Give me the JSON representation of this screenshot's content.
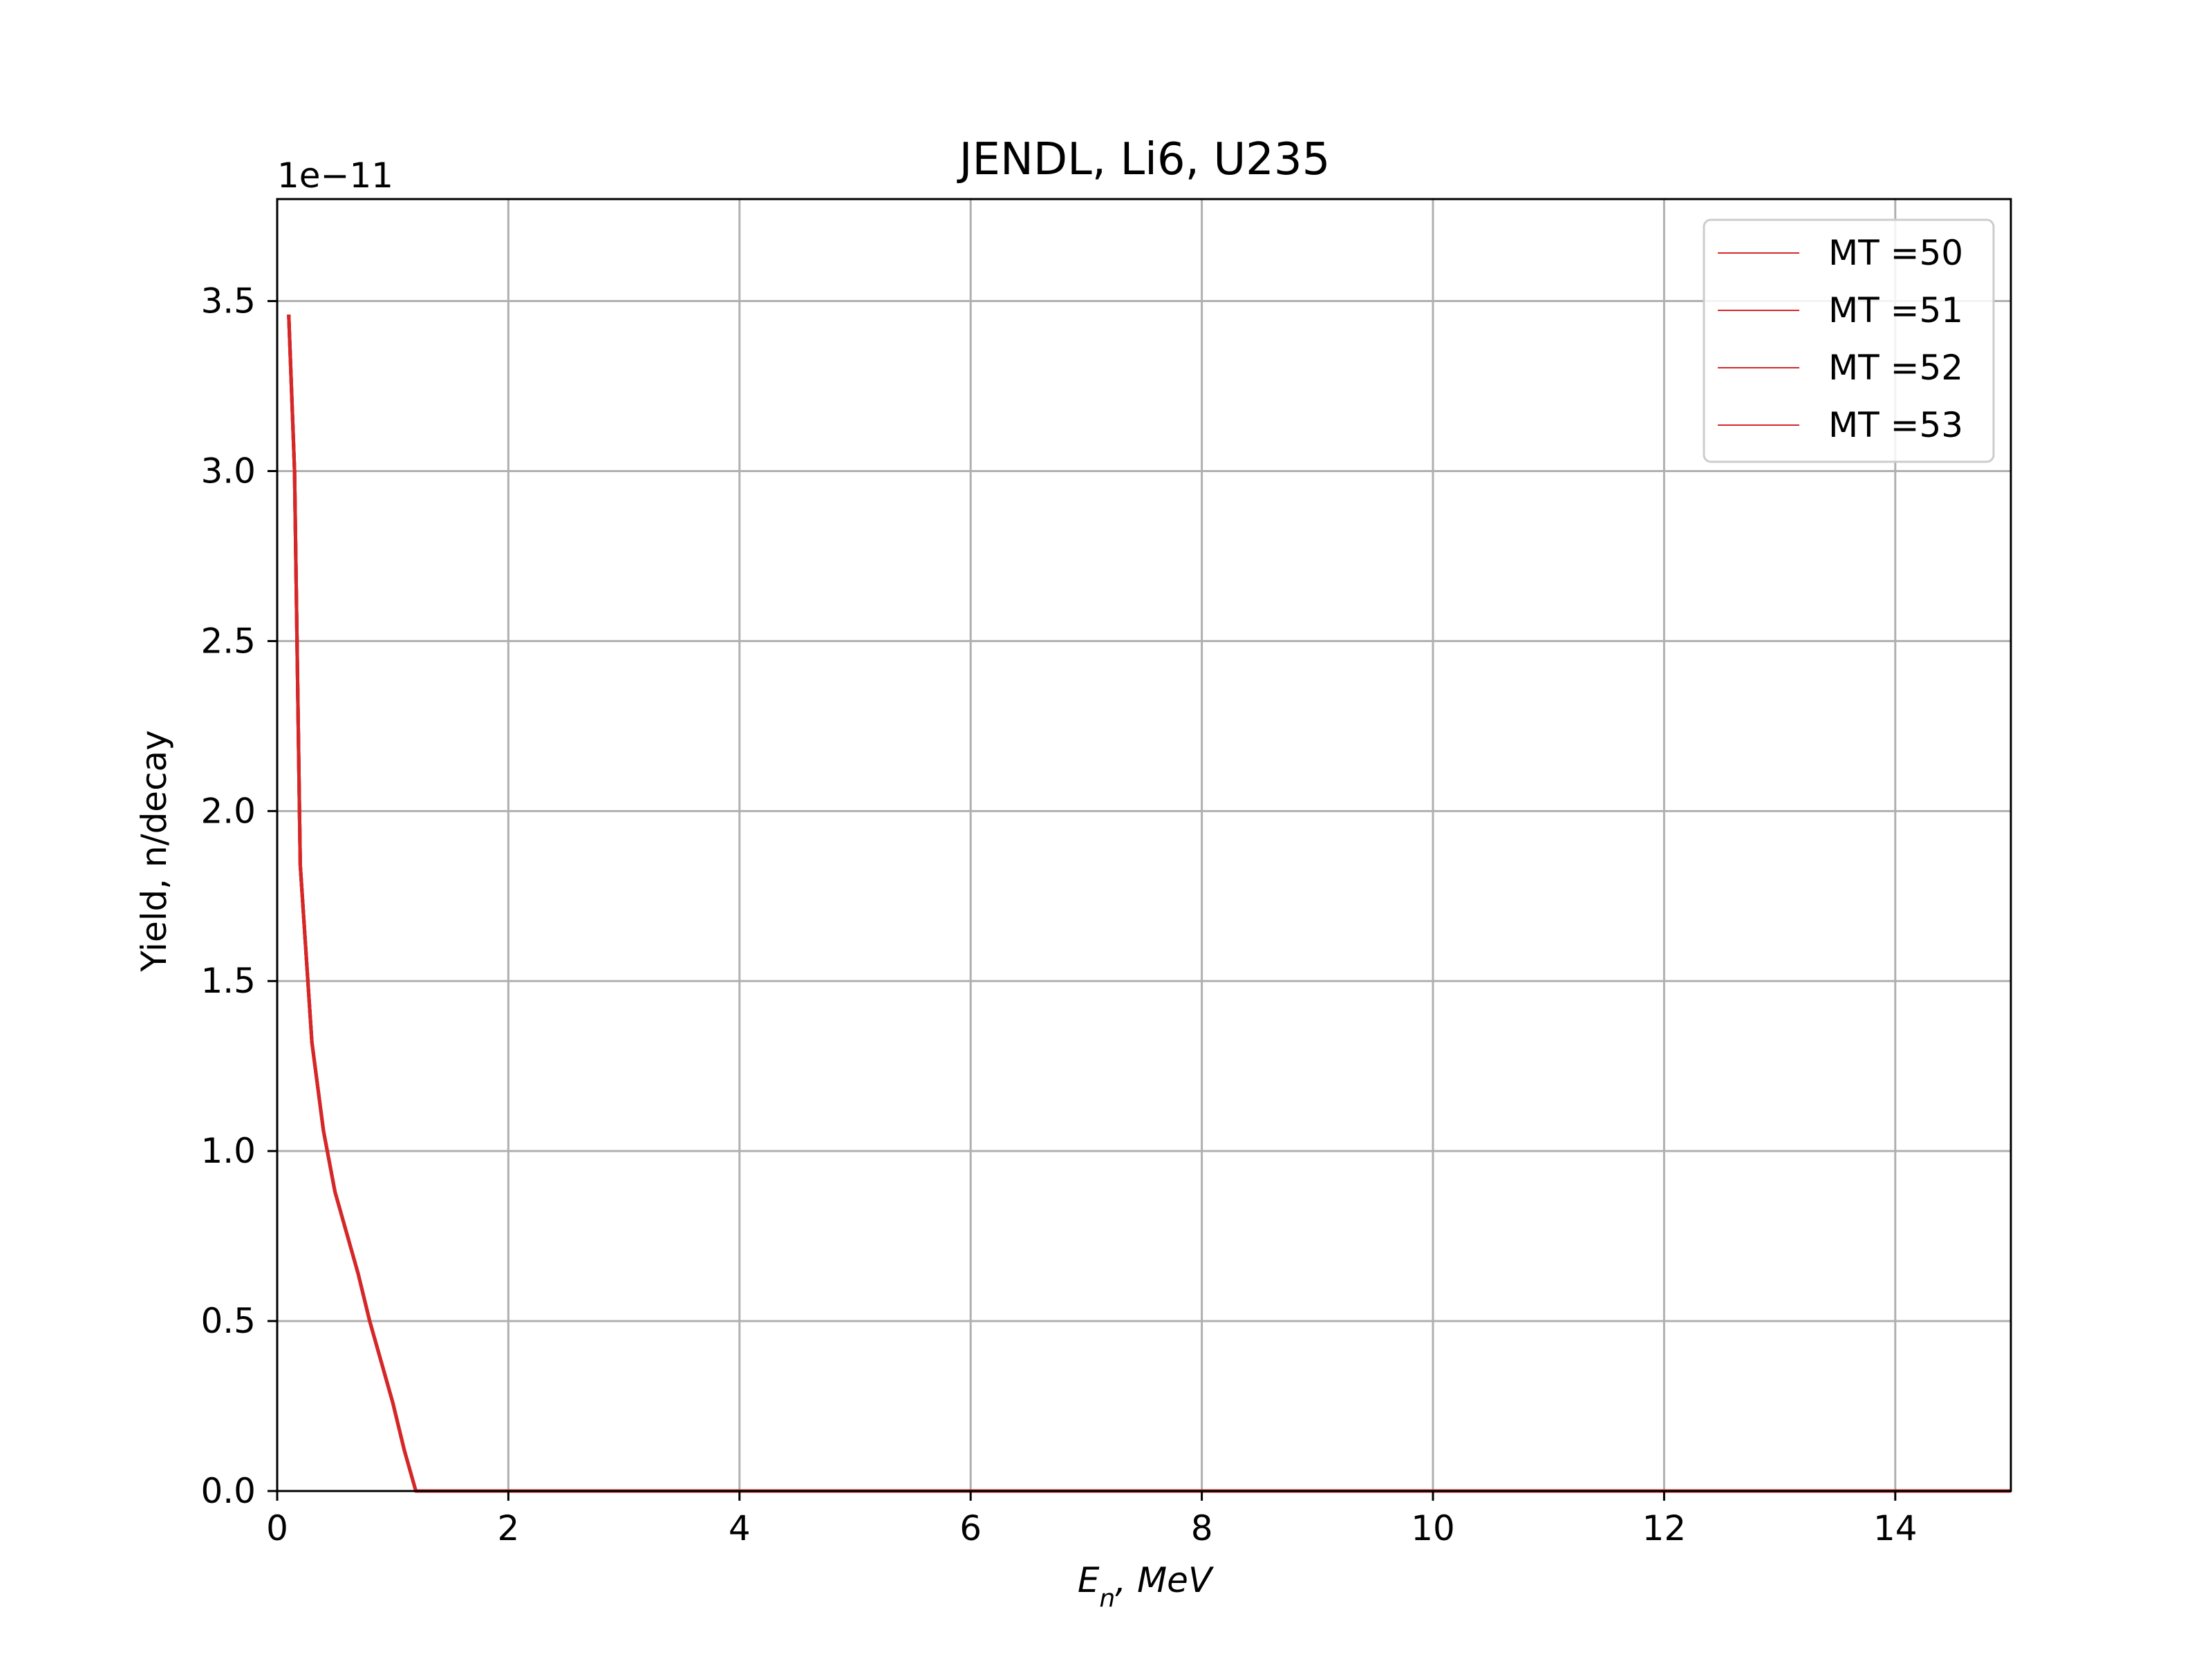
{
  "chart_data": {
    "type": "line",
    "title": "JENDL, Li6, U235",
    "xlabel": "E_n, MeV",
    "ylabel": "Yield, n/decay",
    "y_scale_label": "1e−11",
    "xlim": [
      0,
      15
    ],
    "ylim": [
      0,
      3.8
    ],
    "x_ticks": [
      0,
      2,
      4,
      6,
      8,
      10,
      12,
      14
    ],
    "y_ticks": [
      0.0,
      0.5,
      1.0,
      1.5,
      2.0,
      2.5,
      3.0,
      3.5
    ],
    "x_tick_labels": [
      "0",
      "2",
      "4",
      "6",
      "8",
      "10",
      "12",
      "14"
    ],
    "y_tick_labels": [
      "0.0",
      "0.5",
      "1.0",
      "1.5",
      "2.0",
      "2.5",
      "3.0",
      "3.5"
    ],
    "grid": true,
    "legend_position": "top-right",
    "line_color": "#d62728",
    "series": [
      {
        "name": "MT =50",
        "x": [
          0.1,
          0.15,
          0.2,
          0.3,
          0.4,
          0.5,
          0.6,
          0.7,
          0.8,
          0.9,
          1.0,
          1.1,
          1.2,
          1.3,
          2,
          4,
          6,
          8,
          10,
          12,
          14,
          15
        ],
        "y": [
          3.46,
          3.0,
          1.84,
          1.32,
          1.06,
          0.88,
          0.76,
          0.64,
          0.5,
          0.38,
          0.26,
          0.12,
          0.0,
          0.0,
          0.0,
          0.0,
          0.0,
          0.0,
          0.0,
          0.0,
          0.0,
          0.0
        ]
      },
      {
        "name": "MT =51",
        "x": [
          0.1,
          0.15,
          0.2,
          0.3,
          0.4,
          0.5,
          0.6,
          0.7,
          0.8,
          0.9,
          1.0,
          1.1,
          1.2,
          1.3,
          2,
          4,
          6,
          8,
          10,
          12,
          14,
          15
        ],
        "y": [
          3.46,
          3.0,
          1.84,
          1.32,
          1.06,
          0.88,
          0.76,
          0.64,
          0.5,
          0.38,
          0.26,
          0.12,
          0.0,
          0.0,
          0.0,
          0.0,
          0.0,
          0.0,
          0.0,
          0.0,
          0.0,
          0.0
        ]
      },
      {
        "name": "MT =52",
        "x": [
          0.1,
          0.15,
          0.2,
          0.3,
          0.4,
          0.5,
          0.6,
          0.7,
          0.8,
          0.9,
          1.0,
          1.1,
          1.2,
          1.3,
          2,
          4,
          6,
          8,
          10,
          12,
          14,
          15
        ],
        "y": [
          3.46,
          3.0,
          1.84,
          1.32,
          1.06,
          0.88,
          0.76,
          0.64,
          0.5,
          0.38,
          0.26,
          0.12,
          0.0,
          0.0,
          0.0,
          0.0,
          0.0,
          0.0,
          0.0,
          0.0,
          0.0,
          0.0
        ]
      },
      {
        "name": "MT =53",
        "x": [
          0.1,
          0.15,
          0.2,
          0.3,
          0.4,
          0.5,
          0.6,
          0.7,
          0.8,
          0.9,
          1.0,
          1.1,
          1.2,
          1.3,
          2,
          4,
          6,
          8,
          10,
          12,
          14,
          15
        ],
        "y": [
          3.46,
          3.0,
          1.84,
          1.32,
          1.06,
          0.88,
          0.76,
          0.64,
          0.5,
          0.38,
          0.26,
          0.12,
          0.0,
          0.0,
          0.0,
          0.0,
          0.0,
          0.0,
          0.0,
          0.0,
          0.0,
          0.0
        ]
      }
    ]
  }
}
